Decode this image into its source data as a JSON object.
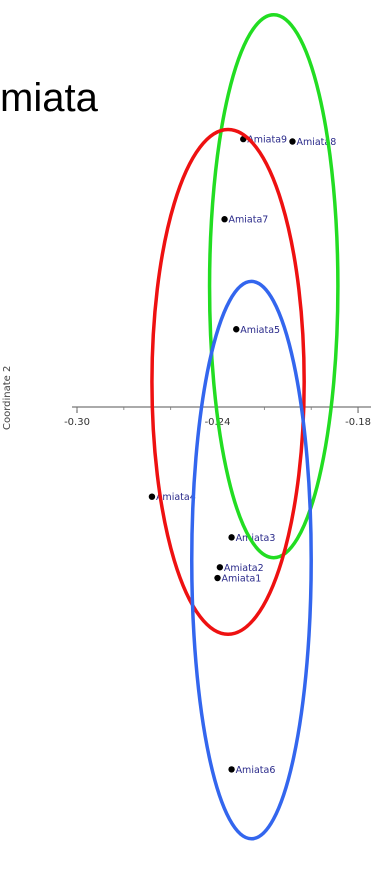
{
  "page": {
    "title_fragment": "miata"
  },
  "chart_data": {
    "type": "scatter",
    "xlabel": "",
    "ylabel": "Coordinate 2",
    "x_ticks": [
      -0.3,
      -0.24,
      -0.18
    ],
    "x_tick_labels": [
      "-0.30",
      "-0.24",
      "-0.18"
    ],
    "points": [
      {
        "label": "Amiata9",
        "x": -0.229,
        "y": 0.112
      },
      {
        "label": "Amiata8",
        "x": -0.208,
        "y": 0.111
      },
      {
        "label": "Amiata7",
        "x": -0.237,
        "y": 0.0785
      },
      {
        "label": "Amiata5",
        "x": -0.232,
        "y": 0.0325
      },
      {
        "label": "Amiata4",
        "x": -0.268,
        "y": -0.0375
      },
      {
        "label": "Amiata3",
        "x": -0.234,
        "y": -0.0545
      },
      {
        "label": "Amiata2",
        "x": -0.239,
        "y": -0.067
      },
      {
        "label": "Amiata1",
        "x": -0.24,
        "y": -0.0715
      },
      {
        "label": "Amiata6",
        "x": -0.234,
        "y": -0.1515
      }
    ],
    "ellipses": [
      {
        "color": "#22dd22",
        "cx": -0.216,
        "cy": 0.0505,
        "rx": 0.0274,
        "ry": 0.1135
      },
      {
        "color": "#ee1111",
        "cx": -0.2355,
        "cy": 0.0105,
        "rx": 0.0325,
        "ry": 0.1055
      },
      {
        "color": "#3366ee",
        "cx": -0.2255,
        "cy": -0.064,
        "rx": 0.0255,
        "ry": 0.1165
      }
    ],
    "grid": false,
    "legend": "none"
  }
}
